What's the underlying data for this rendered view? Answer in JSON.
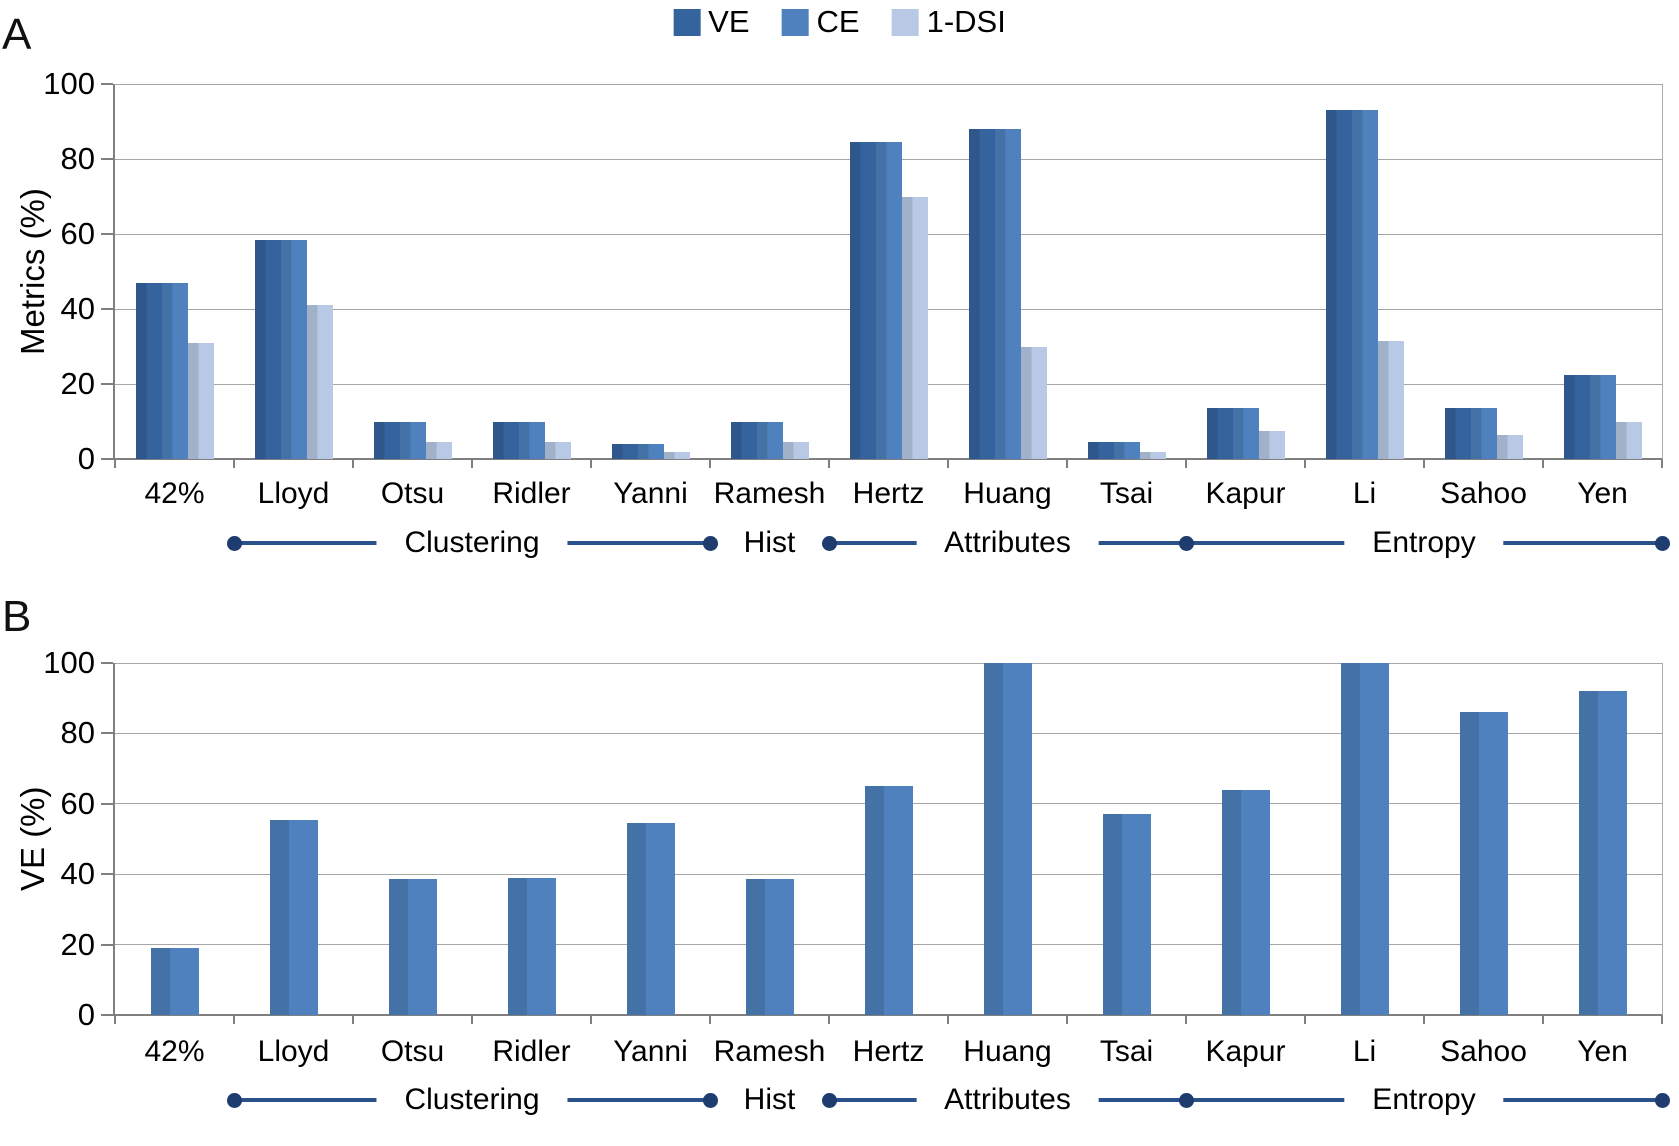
{
  "legend": {
    "items": [
      {
        "label": "VE",
        "color": "#35639E"
      },
      {
        "label": "CE",
        "color": "#4E81BD"
      },
      {
        "label": "1-DSI",
        "color": "#B8C9E5"
      }
    ]
  },
  "chart_data": [
    {
      "type": "bar",
      "panel_label": "A",
      "ylabel": "Metrics (%)",
      "ylim": [
        0,
        100
      ],
      "yticks": [
        0,
        20,
        40,
        60,
        80,
        100
      ],
      "grid": true,
      "legend_position": "top-center",
      "legend_entries": [
        "VE",
        "CE",
        "1-DSI"
      ],
      "categories": [
        "42%",
        "Lloyd",
        "Otsu",
        "Ridler",
        "Yanni",
        "Ramesh",
        "Hertz",
        "Huang",
        "Tsai",
        "Kapur",
        "Li",
        "Sahoo",
        "Yen"
      ],
      "series": [
        {
          "name": "VE",
          "color": "#35639E",
          "values": [
            47,
            58.5,
            10,
            10,
            4,
            10,
            84.5,
            88,
            4.5,
            13.5,
            93,
            13.5,
            22.5
          ]
        },
        {
          "name": "CE",
          "color": "#4E81BD",
          "values": [
            47,
            58.5,
            10,
            10,
            4,
            10,
            84.5,
            88,
            4.5,
            13.5,
            93,
            13.5,
            22.5
          ]
        },
        {
          "name": "1-DSI",
          "color": "#B8C9E5",
          "values": [
            31,
            41,
            4.5,
            4.5,
            2,
            4.5,
            70,
            30,
            2,
            7.5,
            31.5,
            6.5,
            10
          ]
        }
      ],
      "groups": [
        {
          "label": "Clustering",
          "start_category": "Lloyd",
          "end_category": "Yanni"
        },
        {
          "label": "Hist",
          "start_category": "Ramesh",
          "end_category": "Ramesh"
        },
        {
          "label": "Attributes",
          "start_category": "Hertz",
          "end_category": "Tsai"
        },
        {
          "label": "Entropy",
          "start_category": "Kapur",
          "end_category": "Yen"
        }
      ]
    },
    {
      "type": "bar",
      "panel_label": "B",
      "ylabel": "VE (%)",
      "ylim": [
        0,
        100
      ],
      "yticks": [
        0,
        20,
        40,
        60,
        80,
        100
      ],
      "grid": true,
      "categories": [
        "42%",
        "Lloyd",
        "Otsu",
        "Ridler",
        "Yanni",
        "Ramesh",
        "Hertz",
        "Huang",
        "Tsai",
        "Kapur",
        "Li",
        "Sahoo",
        "Yen"
      ],
      "series": [
        {
          "name": "VE",
          "color": "#4E81BD",
          "values": [
            19,
            55.5,
            38.5,
            39,
            54.5,
            38.5,
            65,
            100,
            57,
            64,
            100,
            86,
            92
          ]
        }
      ],
      "groups": [
        {
          "label": "Clustering",
          "start_category": "Lloyd",
          "end_category": "Yanni"
        },
        {
          "label": "Hist",
          "start_category": "Ramesh",
          "end_category": "Ramesh"
        },
        {
          "label": "Attributes",
          "start_category": "Hertz",
          "end_category": "Tsai"
        },
        {
          "label": "Entropy",
          "start_category": "Kapur",
          "end_category": "Yen"
        }
      ]
    }
  ]
}
